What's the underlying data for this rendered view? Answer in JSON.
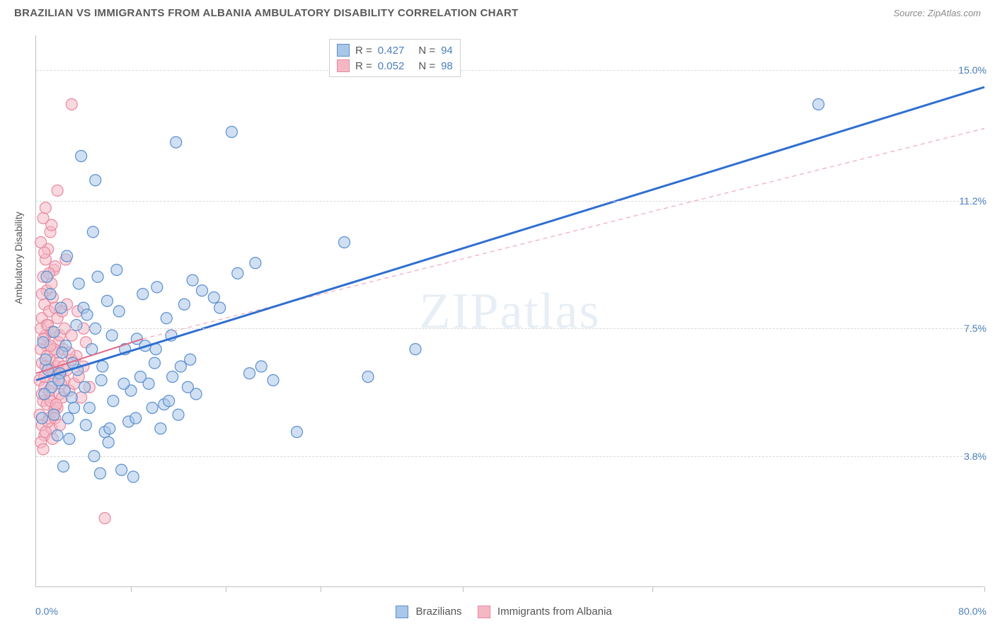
{
  "header": {
    "title": "BRAZILIAN VS IMMIGRANTS FROM ALBANIA AMBULATORY DISABILITY CORRELATION CHART",
    "source": "Source: ZipAtlas.com"
  },
  "chart": {
    "type": "scatter",
    "y_axis_label": "Ambulatory Disability",
    "xlim": [
      0,
      80
    ],
    "ylim": [
      0,
      16
    ],
    "x_min_label": "0.0%",
    "x_max_label": "80.0%",
    "y_ticks": [
      {
        "value": 3.8,
        "label": "3.8%"
      },
      {
        "value": 7.5,
        "label": "7.5%"
      },
      {
        "value": 11.2,
        "label": "11.2%"
      },
      {
        "value": 15.0,
        "label": "15.0%"
      }
    ],
    "x_tick_positions": [
      8,
      16,
      24,
      36,
      52,
      80
    ],
    "background_color": "#ffffff",
    "grid_color": "#d8d8d8",
    "marker_radius": 8,
    "marker_stroke_width": 1.2,
    "watermark": "ZIPatlas",
    "series": [
      {
        "name": "Brazilians",
        "fill_color": "#a9c7e8",
        "stroke_color": "#5b8fd0",
        "fill_opacity": 0.55,
        "r_value": "0.427",
        "n_value": "94",
        "trend": {
          "x1": 0,
          "y1": 6.0,
          "x2": 80,
          "y2": 14.5,
          "dash": "none",
          "width": 3,
          "color": "#2f6fd0"
        },
        "points": [
          [
            1,
            6.3
          ],
          [
            1.3,
            5.8
          ],
          [
            0.8,
            6.6
          ],
          [
            2,
            6.2
          ],
          [
            2.5,
            7.0
          ],
          [
            3,
            5.5
          ],
          [
            1.5,
            5.0
          ],
          [
            0.6,
            7.1
          ],
          [
            2.2,
            6.8
          ],
          [
            3.5,
            6.3
          ],
          [
            4,
            8.1
          ],
          [
            4.5,
            5.2
          ],
          [
            5,
            7.5
          ],
          [
            5.5,
            6.0
          ],
          [
            6,
            8.3
          ],
          [
            6.5,
            5.4
          ],
          [
            7,
            8.0
          ],
          [
            7.5,
            6.9
          ],
          [
            8,
            5.7
          ],
          [
            8.5,
            7.2
          ],
          [
            9,
            8.5
          ],
          [
            9.5,
            5.9
          ],
          [
            10,
            6.5
          ],
          [
            10.2,
            8.7
          ],
          [
            10.8,
            5.3
          ],
          [
            11,
            7.8
          ],
          [
            11.5,
            6.1
          ],
          [
            12,
            5.0
          ],
          [
            12.5,
            8.2
          ],
          [
            13,
            6.6
          ],
          [
            13.5,
            5.6
          ],
          [
            4.2,
            4.7
          ],
          [
            5.8,
            4.5
          ],
          [
            2.8,
            4.3
          ],
          [
            6.2,
            4.6
          ],
          [
            7.8,
            4.8
          ],
          [
            3.2,
            5.2
          ],
          [
            1.8,
            4.4
          ],
          [
            2.4,
            5.7
          ],
          [
            4.7,
            6.9
          ],
          [
            8.2,
            3.2
          ],
          [
            7.2,
            3.4
          ],
          [
            5.4,
            3.3
          ],
          [
            9.8,
            5.2
          ],
          [
            11.2,
            5.4
          ],
          [
            12.8,
            5.8
          ],
          [
            13.2,
            8.9
          ],
          [
            10.5,
            4.6
          ],
          [
            6.8,
            9.2
          ],
          [
            5.2,
            9.0
          ],
          [
            4.8,
            10.3
          ],
          [
            3.6,
            8.8
          ],
          [
            1.2,
            8.5
          ],
          [
            2.6,
            9.6
          ],
          [
            0.9,
            9.0
          ],
          [
            3.8,
            12.5
          ],
          [
            11.8,
            12.9
          ],
          [
            16.5,
            13.2
          ],
          [
            14,
            8.6
          ],
          [
            15,
            8.4
          ],
          [
            15.5,
            8.1
          ],
          [
            17,
            9.1
          ],
          [
            18,
            6.2
          ],
          [
            18.5,
            9.4
          ],
          [
            19,
            6.4
          ],
          [
            20,
            6.0
          ],
          [
            22,
            4.5
          ],
          [
            26,
            10.0
          ],
          [
            28,
            6.1
          ],
          [
            32,
            6.9
          ],
          [
            5,
            11.8
          ],
          [
            66,
            14.0
          ],
          [
            1.5,
            7.4
          ],
          [
            0.7,
            5.6
          ],
          [
            2.1,
            8.1
          ],
          [
            3.4,
            7.6
          ],
          [
            4.3,
            7.9
          ],
          [
            0.5,
            4.9
          ],
          [
            1.9,
            6.0
          ],
          [
            2.7,
            4.9
          ],
          [
            3.1,
            6.5
          ],
          [
            4.1,
            5.8
          ],
          [
            5.6,
            6.4
          ],
          [
            6.4,
            7.3
          ],
          [
            7.4,
            5.9
          ],
          [
            8.8,
            6.1
          ],
          [
            9.2,
            7.0
          ],
          [
            10.1,
            6.9
          ],
          [
            11.4,
            7.3
          ],
          [
            12.2,
            6.4
          ],
          [
            2.3,
            3.5
          ],
          [
            4.9,
            3.8
          ],
          [
            6.1,
            4.2
          ],
          [
            8.4,
            4.9
          ]
        ]
      },
      {
        "name": "Immigrants from Albania",
        "fill_color": "#f4b8c5",
        "stroke_color": "#e88aa0",
        "fill_opacity": 0.55,
        "r_value": "0.052",
        "n_value": "98",
        "trend_solid": {
          "x1": 0,
          "y1": 6.2,
          "x2": 9,
          "y2": 7.2,
          "width": 2,
          "color": "#e06a8a"
        },
        "trend_dash": {
          "x1": 9,
          "y1": 7.2,
          "x2": 80,
          "y2": 13.3,
          "width": 1.2,
          "color": "#f0a8b8"
        },
        "points": [
          [
            0.3,
            6.0
          ],
          [
            0.5,
            6.5
          ],
          [
            0.7,
            5.8
          ],
          [
            0.9,
            7.0
          ],
          [
            1.0,
            6.3
          ],
          [
            1.1,
            5.5
          ],
          [
            1.3,
            7.4
          ],
          [
            1.5,
            6.1
          ],
          [
            1.6,
            5.2
          ],
          [
            1.8,
            6.8
          ],
          [
            0.4,
            6.9
          ],
          [
            0.6,
            5.4
          ],
          [
            0.8,
            7.3
          ],
          [
            1.2,
            6.6
          ],
          [
            1.4,
            5.9
          ],
          [
            1.7,
            6.4
          ],
          [
            1.9,
            7.1
          ],
          [
            2.0,
            5.6
          ],
          [
            2.1,
            6.2
          ],
          [
            2.3,
            6.9
          ],
          [
            0.5,
            7.8
          ],
          [
            0.7,
            8.2
          ],
          [
            0.9,
            8.6
          ],
          [
            1.1,
            8.0
          ],
          [
            1.3,
            8.8
          ],
          [
            1.5,
            9.2
          ],
          [
            0.6,
            9.0
          ],
          [
            0.8,
            9.5
          ],
          [
            1.0,
            9.8
          ],
          [
            1.2,
            10.3
          ],
          [
            0.4,
            10.0
          ],
          [
            0.6,
            10.7
          ],
          [
            0.8,
            11.0
          ],
          [
            1.4,
            8.4
          ],
          [
            1.6,
            9.3
          ],
          [
            0.5,
            8.5
          ],
          [
            0.9,
            7.6
          ],
          [
            1.1,
            9.1
          ],
          [
            1.3,
            10.5
          ],
          [
            0.7,
            9.7
          ],
          [
            0.3,
            5.0
          ],
          [
            0.5,
            4.7
          ],
          [
            0.7,
            4.4
          ],
          [
            0.9,
            5.3
          ],
          [
            1.1,
            4.9
          ],
          [
            1.3,
            4.6
          ],
          [
            1.5,
            5.1
          ],
          [
            0.4,
            4.2
          ],
          [
            0.6,
            4.0
          ],
          [
            0.8,
            4.5
          ],
          [
            1.0,
            4.8
          ],
          [
            1.2,
            5.4
          ],
          [
            1.4,
            4.3
          ],
          [
            1.6,
            4.9
          ],
          [
            1.8,
            5.2
          ],
          [
            2.0,
            4.7
          ],
          [
            2.2,
            5.5
          ],
          [
            2.4,
            6.0
          ],
          [
            2.6,
            6.3
          ],
          [
            2.8,
            5.7
          ],
          [
            3.0,
            6.6
          ],
          [
            3.2,
            5.9
          ],
          [
            3.4,
            6.7
          ],
          [
            3.6,
            6.1
          ],
          [
            3.8,
            5.5
          ],
          [
            4.0,
            6.4
          ],
          [
            4.2,
            7.1
          ],
          [
            4.5,
            5.8
          ],
          [
            0.5,
            5.6
          ],
          [
            0.7,
            6.1
          ],
          [
            0.9,
            6.7
          ],
          [
            1.1,
            5.7
          ],
          [
            1.3,
            6.3
          ],
          [
            1.5,
            6.9
          ],
          [
            1.7,
            5.3
          ],
          [
            1.9,
            6.5
          ],
          [
            2.1,
            5.9
          ],
          [
            2.3,
            6.4
          ],
          [
            1.8,
            11.5
          ],
          [
            3.0,
            14.0
          ],
          [
            5.8,
            2.0
          ],
          [
            0.4,
            7.5
          ],
          [
            0.6,
            7.2
          ],
          [
            0.8,
            6.4
          ],
          [
            1.0,
            7.6
          ],
          [
            1.2,
            7.0
          ],
          [
            1.4,
            7.4
          ],
          [
            1.6,
            8.1
          ],
          [
            1.8,
            7.8
          ],
          [
            2.0,
            7.3
          ],
          [
            2.2,
            8.0
          ],
          [
            2.4,
            7.5
          ],
          [
            2.6,
            8.2
          ],
          [
            2.8,
            6.8
          ],
          [
            3.0,
            7.3
          ],
          [
            3.5,
            8.0
          ],
          [
            4.0,
            7.5
          ],
          [
            2.5,
            9.5
          ]
        ]
      }
    ]
  },
  "bottom_legend": {
    "series1_label": "Brazilians",
    "series2_label": "Immigrants from Albania"
  }
}
